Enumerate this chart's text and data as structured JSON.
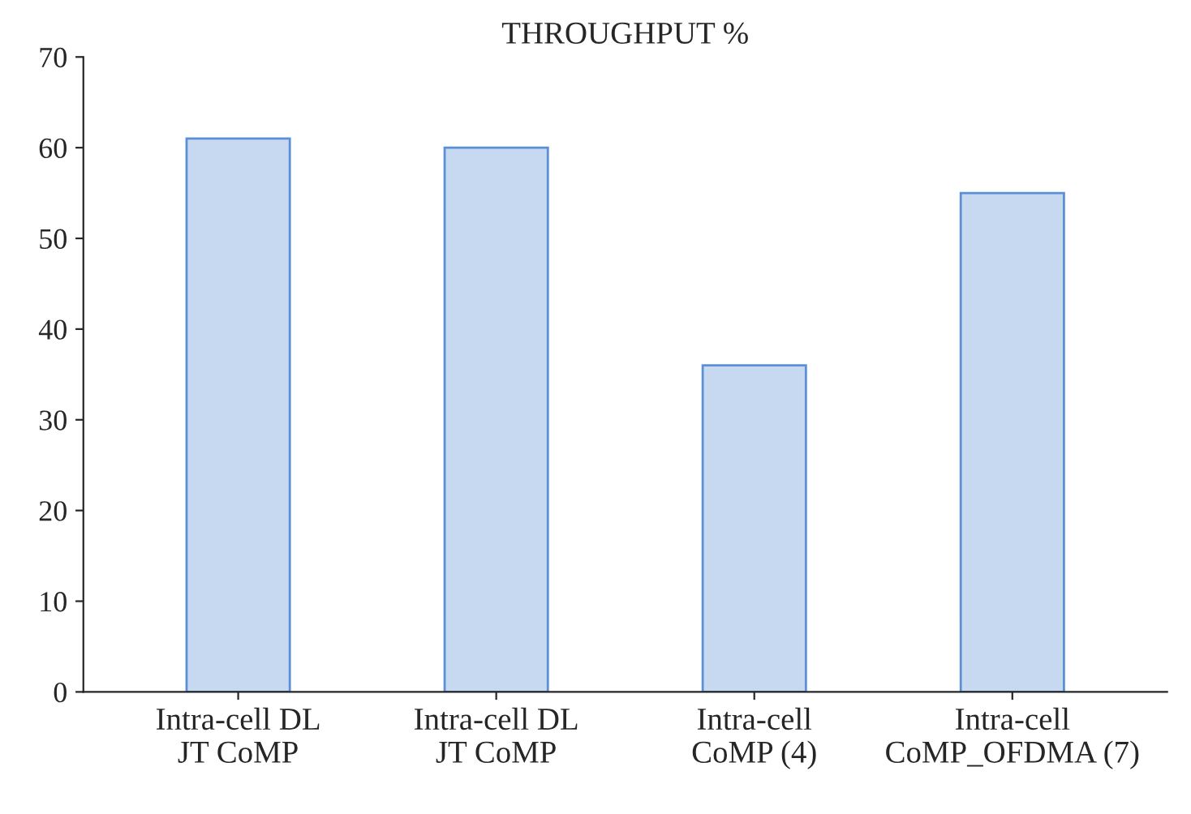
{
  "chart_data": {
    "type": "bar",
    "title": "THROUGHPUT %",
    "categories": [
      "Intra-cell DL\nJT CoMP",
      "Intra-cell DL\nJT CoMP",
      "Intra-cell\nCoMP (4)",
      "Intra-cell\nCoMP_OFDMA (7)"
    ],
    "values": [
      61,
      60,
      36,
      55
    ],
    "color": "#c6d9f1",
    "ylim": [
      0,
      70
    ],
    "yticks": [
      0,
      10,
      20,
      30,
      40,
      50,
      60,
      70
    ],
    "grid": false
  }
}
